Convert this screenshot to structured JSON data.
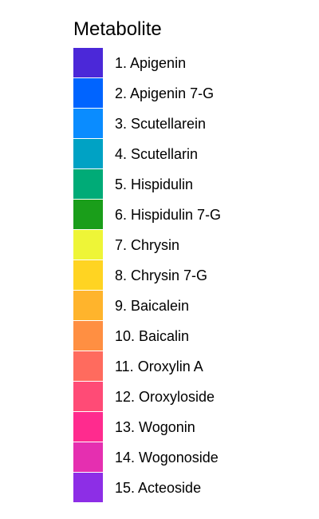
{
  "chart_data": {
    "type": "legend",
    "title": "Metabolite",
    "entries": [
      {
        "label": "1. Apigenin",
        "color": "#4B28D8"
      },
      {
        "label": "2. Apigenin 7-G",
        "color": "#0064FF"
      },
      {
        "label": "3. Scutellarein",
        "color": "#0A8CFF"
      },
      {
        "label": "4. Scutellarin",
        "color": "#00A2C4"
      },
      {
        "label": "5. Hispidulin",
        "color": "#00AB77"
      },
      {
        "label": "6. Hispidulin 7-G",
        "color": "#1A9E1A"
      },
      {
        "label": "7. Chrysin",
        "color": "#EEF537"
      },
      {
        "label": "8. Chrysin 7-G",
        "color": "#FFD422"
      },
      {
        "label": "9. Baicalein",
        "color": "#FFB42C"
      },
      {
        "label": "10. Baicalin",
        "color": "#FF8F42"
      },
      {
        "label": "11. Oroxylin A",
        "color": "#FF6B5E"
      },
      {
        "label": "12. Oroxyloside",
        "color": "#FF4B76"
      },
      {
        "label": "13. Wogonin",
        "color": "#FF2B8E"
      },
      {
        "label": "14. Wogonoside",
        "color": "#E52FB0"
      },
      {
        "label": "15. Acteoside",
        "color": "#8D2EE6"
      }
    ]
  }
}
